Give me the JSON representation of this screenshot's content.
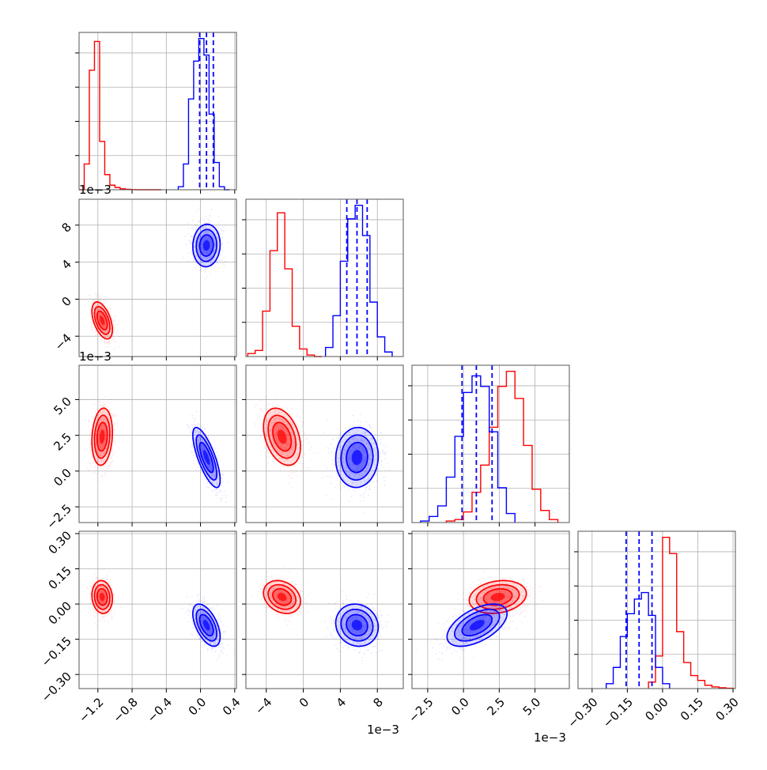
{
  "figure": {
    "type": "corner_plot",
    "parameters": 4,
    "colors": {
      "red": "#ff0000",
      "blue": "#0000ff",
      "grid": "#b0b0b0"
    },
    "grid": true,
    "offset_labels": {
      "row1_y": "1e−3",
      "row2_y": "1e−3",
      "col1_x": "1e−3",
      "col2_x": "1e−3"
    }
  },
  "chart_data": {
    "type": "corner",
    "parameters": [
      {
        "index": 0,
        "ticks": [
          -1.2,
          -0.8,
          -0.4,
          0.0,
          0.4
        ],
        "tick_labels": [
          "−1.2",
          "−0.8",
          "−0.4",
          "0.0",
          "0.4"
        ],
        "range": [
          -1.42,
          0.42
        ],
        "red_hist": {
          "edges": [
            -1.42,
            -1.36,
            -1.3,
            -1.24,
            -1.18,
            -1.12,
            -1.06,
            -1.0,
            -0.94,
            -0.88,
            -0.82,
            -0.76,
            -0.7,
            -0.64,
            -0.58,
            -0.52,
            -0.46
          ],
          "counts": [
            0.0,
            0.17,
            0.79,
            0.98,
            0.32,
            0.1,
            0.03,
            0.015,
            0.006,
            0.003,
            0.001,
            0.0,
            0.0,
            0.0,
            0.0,
            0.0
          ]
        },
        "blue_hist": {
          "edges": [
            -0.26,
            -0.2,
            -0.14,
            -0.08,
            -0.02,
            0.04,
            0.1,
            0.16,
            0.22,
            0.28,
            0.34
          ],
          "counts": [
            0.02,
            0.17,
            0.6,
            0.85,
            1.0,
            0.89,
            0.5,
            0.18,
            0.02,
            0.0
          ]
        },
        "blue_quantiles": [
          -0.01,
          0.07,
          0.15
        ]
      },
      {
        "index": 1,
        "ticks": [
          -4,
          0,
          4,
          8
        ],
        "tick_labels": [
          "−4",
          "0",
          "4",
          "8"
        ],
        "range": [
          -6.2,
          10.8
        ],
        "red_hist": {
          "edges": [
            -6.0,
            -5.2,
            -4.4,
            -3.6,
            -2.8,
            -2.0,
            -1.2,
            -0.4,
            0.4,
            1.2,
            2.0
          ],
          "counts": [
            0.02,
            0.04,
            0.3,
            0.7,
            0.95,
            0.58,
            0.2,
            0.05,
            0.01,
            0.0
          ]
        },
        "blue_hist": {
          "edges": [
            2.4,
            3.2,
            4.0,
            4.8,
            5.6,
            6.4,
            7.2,
            8.0,
            8.8,
            9.6
          ],
          "counts": [
            0.06,
            0.27,
            0.63,
            0.91,
            1.0,
            0.8,
            0.36,
            0.13,
            0.03
          ]
        },
        "blue_quantiles": [
          4.7,
          5.8,
          6.9
        ]
      },
      {
        "index": 2,
        "ticks": [
          -2.5,
          0.0,
          2.5,
          5.0
        ],
        "tick_labels": [
          "−2.5",
          "0.0",
          "2.5",
          "5.0"
        ],
        "range": [
          -3.6,
          7.4
        ],
        "red_hist": {
          "edges": [
            -1.2,
            -0.6,
            0.0,
            0.6,
            1.2,
            1.8,
            2.4,
            3.0,
            3.6,
            4.2,
            4.8,
            5.4,
            6.0,
            6.6
          ],
          "counts": [
            0.01,
            0.02,
            0.07,
            0.2,
            0.38,
            0.63,
            0.9,
            1.0,
            0.82,
            0.51,
            0.22,
            0.08,
            0.02
          ]
        },
        "blue_hist": {
          "edges": [
            -3.0,
            -2.4,
            -1.8,
            -1.2,
            -0.6,
            0.0,
            0.6,
            1.2,
            1.8,
            2.4,
            3.0,
            3.6
          ],
          "counts": [
            0.01,
            0.04,
            0.11,
            0.3,
            0.57,
            0.86,
            0.97,
            0.9,
            0.6,
            0.23,
            0.06
          ]
        },
        "blue_quantiles": [
          -0.1,
          0.9,
          2.0
        ]
      },
      {
        "index": 3,
        "ticks": [
          -0.3,
          -0.15,
          0.0,
          0.15,
          0.3
        ],
        "tick_labels": [
          "−0.30",
          "−0.15",
          "0.00",
          "0.15",
          "0.30"
        ],
        "range": [
          -0.36,
          0.31
        ],
        "red_hist": {
          "edges": [
            -0.06,
            -0.03,
            0.0,
            0.03,
            0.06,
            0.09,
            0.12,
            0.15,
            0.18,
            0.21,
            0.24,
            0.27,
            0.3
          ],
          "counts": [
            0.04,
            0.2,
            0.93,
            0.83,
            0.35,
            0.16,
            0.08,
            0.05,
            0.02,
            0.01,
            0.005,
            0.002
          ]
        },
        "blue_hist": {
          "edges": [
            -0.24,
            -0.21,
            -0.18,
            -0.15,
            -0.12,
            -0.09,
            -0.06,
            -0.03,
            0.0,
            0.03
          ],
          "counts": [
            0.03,
            0.13,
            0.32,
            0.46,
            0.55,
            0.59,
            0.45,
            0.13,
            0.03
          ]
        },
        "blue_quantiles": [
          -0.155,
          -0.1,
          -0.045
        ]
      }
    ],
    "clusters": {
      "red": {
        "mean": [
          -1.15,
          -2.3,
          2.4,
          0.03
        ],
        "std": [
          0.06,
          1.0,
          1.0,
          0.035
        ],
        "corr": [
          [
            1.0,
            -0.5,
            0.15,
            -0.1
          ],
          [
            -0.5,
            1.0,
            -0.35,
            -0.25
          ],
          [
            0.15,
            -0.35,
            1.0,
            0.2
          ],
          [
            -0.1,
            -0.25,
            0.2,
            1.0
          ]
        ]
      },
      "blue": {
        "mean": [
          0.07,
          5.8,
          0.95,
          -0.09
        ],
        "std": [
          0.08,
          1.15,
          1.05,
          0.045
        ],
        "corr": [
          [
            1.0,
            0.05,
            -0.75,
            -0.55
          ],
          [
            0.05,
            1.0,
            0.05,
            -0.1
          ],
          [
            -0.75,
            0.05,
            1.0,
            0.55
          ],
          [
            -0.55,
            -0.1,
            0.55,
            1.0
          ]
        ]
      }
    },
    "contour_levels_sigma": [
      0.5,
      1.0,
      1.5,
      2.0
    ]
  }
}
